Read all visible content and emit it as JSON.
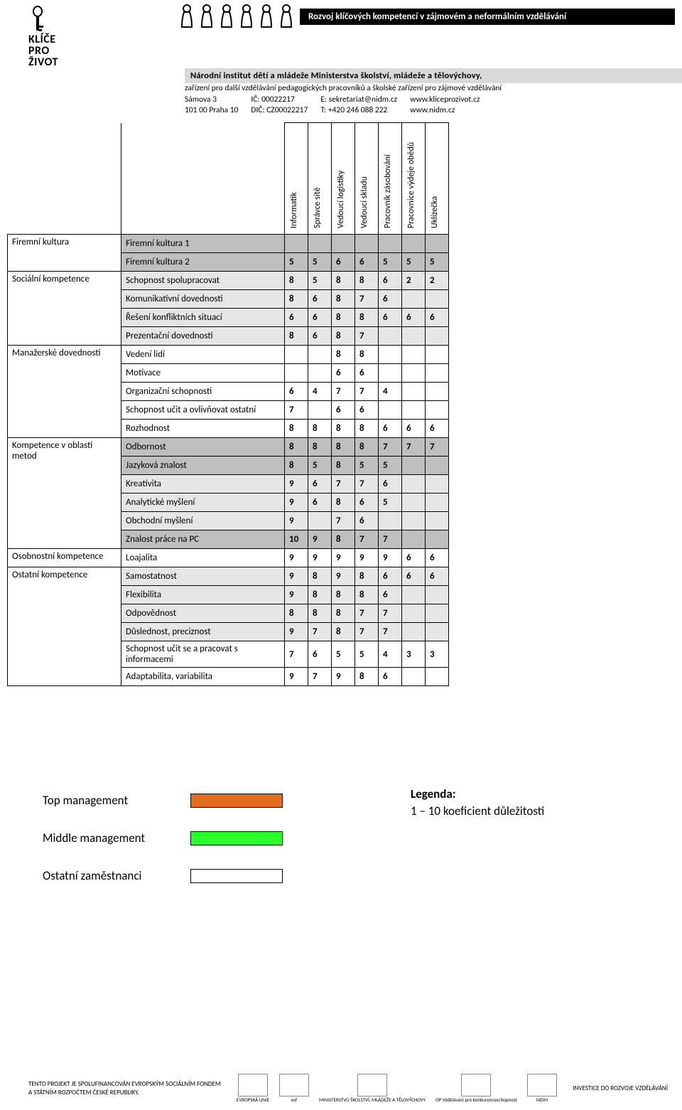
{
  "header": {
    "logo_line1": "KLÍČE",
    "logo_line2": "PRO",
    "logo_line3": "ŽIVOT",
    "black_band": "Rozvoj klíčových kompetencí v zájmovém a neformálním vzdělávání",
    "grey_band": "Národní institut dětí a mládeže Ministerstva školství, mládeže a tělovýchovy,",
    "grey_sub": "zařízení pro další vzdělávání pedagogických pracovníků a školské zařízení pro zájmové vzdělávání",
    "addr1": "Sámova 3",
    "addr2": "101 00 Praha 10",
    "ic_label": "IČ:",
    "ic": "00022217",
    "dic_label": "DIČ:",
    "dic": "CZ00022217",
    "e_label": "E:",
    "email": "sekretariat@nidm.cz",
    "t_label": "T:",
    "tel": "+420 246 088 222",
    "url1": "www.kliceprozivot.cz",
    "url2": "www.nidm.cz"
  },
  "table": {
    "columns": [
      "Informatik",
      "Správce sítě",
      "Vedoucí logistiky",
      "Vedoucí skladu",
      "Pracovník zásobování",
      "Pracovnice výdeje obědů",
      "Uklízečka"
    ],
    "rows": [
      {
        "cat": "Firemní kultura",
        "span": 2,
        "label": "Firemní kultura 1",
        "shade": "dark",
        "v": [
          "",
          "",
          "",
          "",
          "",
          "",
          ""
        ]
      },
      {
        "label": "Firemní kultura 2",
        "shade": "dark",
        "v": [
          "5",
          "5",
          "6",
          "6",
          "5",
          "5",
          "5"
        ]
      },
      {
        "cat": "Sociální kompetence",
        "span": 4,
        "label": "Schopnost spolupracovat",
        "shade": "light",
        "v": [
          "8",
          "5",
          "8",
          "8",
          "6",
          "2",
          "2"
        ]
      },
      {
        "label": "Komunikativní dovednosti",
        "shade": "light",
        "v": [
          "8",
          "6",
          "8",
          "7",
          "6",
          "",
          ""
        ]
      },
      {
        "label": "Řešení konfliktních situací",
        "shade": "light",
        "v": [
          "6",
          "6",
          "8",
          "8",
          "6",
          "6",
          "6"
        ]
      },
      {
        "label": "Prezentační dovednosti",
        "shade": "light",
        "v": [
          "8",
          "6",
          "8",
          "7",
          "",
          "",
          ""
        ]
      },
      {
        "cat": "Manažerské dovednosti",
        "span": 5,
        "label": "Vedení lidí",
        "shade": "none",
        "v": [
          "",
          "",
          "8",
          "8",
          "",
          "",
          ""
        ]
      },
      {
        "label": "Motivace",
        "shade": "none",
        "v": [
          "",
          "",
          "6",
          "6",
          "",
          "",
          ""
        ]
      },
      {
        "label": "Organizační schopnosti",
        "shade": "none",
        "v": [
          "6",
          "4",
          "7",
          "7",
          "4",
          "",
          ""
        ]
      },
      {
        "label": "Schopnost učit a ovlivňovat ostatní",
        "shade": "none",
        "v": [
          "7",
          "",
          "6",
          "6",
          "",
          "",
          ""
        ]
      },
      {
        "label": "Rozhodnost",
        "shade": "none",
        "v": [
          "8",
          "8",
          "8",
          "8",
          "6",
          "6",
          "6"
        ]
      },
      {
        "cat": "Kompetence v oblasti metod",
        "span": 6,
        "label": "Odbornost",
        "shade": "dark",
        "v": [
          "8",
          "8",
          "8",
          "8",
          "7",
          "7",
          "7"
        ]
      },
      {
        "label": "Jazyková znalost",
        "shade": "dark",
        "v": [
          "8",
          "5",
          "8",
          "5",
          "5",
          "",
          ""
        ]
      },
      {
        "label": "Kreativita",
        "shade": "light",
        "v": [
          "9",
          "6",
          "7",
          "7",
          "6",
          "",
          ""
        ]
      },
      {
        "label": "Analytické myšlení",
        "shade": "light",
        "v": [
          "9",
          "6",
          "8",
          "6",
          "5",
          "",
          ""
        ]
      },
      {
        "label": "Obchodní myšlení",
        "shade": "light",
        "v": [
          "9",
          "",
          "7",
          "6",
          "",
          "",
          ""
        ]
      },
      {
        "label": "Znalost práce na PC",
        "shade": "dark",
        "v": [
          "10",
          "9",
          "8",
          "7",
          "7",
          "",
          ""
        ]
      },
      {
        "cat": "Osobnostní kompetence",
        "span": 1,
        "label": "Loajalita",
        "shade": "none",
        "v": [
          "9",
          "9",
          "9",
          "9",
          "9",
          "6",
          "6"
        ]
      },
      {
        "cat": "Ostatní kompetence",
        "span": 6,
        "label": "Samostatnost",
        "shade": "light",
        "v": [
          "9",
          "8",
          "9",
          "8",
          "6",
          "6",
          "6"
        ]
      },
      {
        "label": "Flexibilita",
        "shade": "light",
        "v": [
          "9",
          "8",
          "8",
          "8",
          "6",
          "",
          ""
        ]
      },
      {
        "label": "Odpovědnost",
        "shade": "light",
        "v": [
          "8",
          "8",
          "8",
          "7",
          "7",
          "",
          ""
        ]
      },
      {
        "label": "Důslednost, preciznost",
        "shade": "light",
        "v": [
          "9",
          "7",
          "8",
          "7",
          "7",
          "",
          ""
        ]
      },
      {
        "label": "Schopnost učit se a pracovat s informacemi",
        "shade": "none",
        "v": [
          "7",
          "6",
          "5",
          "5",
          "4",
          "3",
          "3"
        ]
      },
      {
        "label": "Adaptabilita, variabilita",
        "shade": "none",
        "v": [
          "9",
          "7",
          "9",
          "8",
          "6",
          "",
          ""
        ]
      }
    ]
  },
  "legend": {
    "rows": [
      {
        "label": "Top management",
        "color": "#e56b1f"
      },
      {
        "label": "Middle  management",
        "color": "#2aff2a"
      },
      {
        "label": "Ostatní zaměstnanci",
        "color": "#ffffff"
      }
    ],
    "title": "Legenda:",
    "text": " 1 – 10 koeficient důležitosti"
  },
  "footer": {
    "left_line1": "TENTO PROJEKT JE SPOLUFINANCOVÁN EVROPSKÝM SOCIÁLNÍM FONDEM",
    "left_line2": "A STÁTNÍM ROZPOČTEM ČESKÉ REPUBLIKY.",
    "logos": [
      "EVROPSKÁ UNIE",
      "esf",
      "MINISTERSTVO ŠKOLSTVÍ, MLÁDEŽE A TĚLOVÝCHOVY",
      "OP Vzdělávání pro konkurenceschopnost",
      "NIDM"
    ],
    "right": "INVESTICE DO ROZVOJE VZDĚLÁVÁNÍ"
  }
}
